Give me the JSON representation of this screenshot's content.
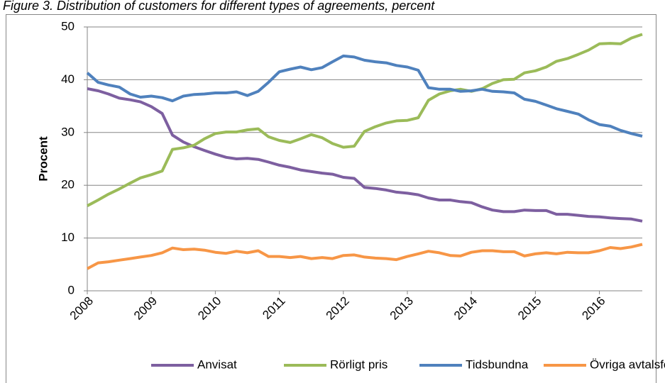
{
  "chart_data": {
    "type": "line",
    "title": "Figure 3. Distribution of customers for different types of agreements, percent",
    "y_label": "Procent",
    "x": [
      2008,
      2008.17,
      2008.33,
      2008.5,
      2008.67,
      2008.83,
      2009,
      2009.17,
      2009.33,
      2009.5,
      2009.67,
      2009.83,
      2010,
      2010.17,
      2010.33,
      2010.5,
      2010.67,
      2010.83,
      2011,
      2011.17,
      2011.33,
      2011.5,
      2011.67,
      2011.83,
      2012,
      2012.17,
      2012.33,
      2012.5,
      2012.67,
      2012.83,
      2013,
      2013.17,
      2013.33,
      2013.5,
      2013.67,
      2013.83,
      2014,
      2014.17,
      2014.33,
      2014.5,
      2014.67,
      2014.83,
      2015,
      2015.17,
      2015.33,
      2015.5,
      2015.67,
      2015.83,
      2016,
      2016.17,
      2016.33,
      2016.5,
      2016.67
    ],
    "series": [
      {
        "name": "Anvisat",
        "color": "#7d5fa0",
        "values": [
          38.3,
          37.9,
          37.3,
          36.5,
          36.2,
          35.8,
          34.9,
          33.6,
          29.5,
          28.2,
          27.3,
          26.6,
          25.9,
          25.3,
          25.0,
          25.1,
          24.9,
          24.4,
          23.8,
          23.4,
          22.9,
          22.6,
          22.3,
          22.1,
          21.5,
          21.3,
          19.6,
          19.4,
          19.1,
          18.7,
          18.5,
          18.2,
          17.6,
          17.2,
          17.2,
          16.9,
          16.7,
          15.9,
          15.3,
          15.0,
          15.0,
          15.3,
          15.2,
          15.2,
          14.5,
          14.5,
          14.3,
          14.1,
          14.0,
          13.8,
          13.7,
          13.6,
          13.2
        ]
      },
      {
        "name": "Rörligt pris",
        "color": "#9bbb59",
        "values": [
          16.1,
          17.2,
          18.3,
          19.3,
          20.4,
          21.4,
          22.0,
          22.7,
          26.8,
          27.1,
          27.6,
          28.8,
          29.8,
          30.1,
          30.1,
          30.5,
          30.7,
          29.2,
          28.5,
          28.1,
          28.8,
          29.6,
          29.0,
          27.9,
          27.2,
          27.4,
          30.2,
          31.1,
          31.8,
          32.2,
          32.3,
          32.8,
          36.1,
          37.3,
          37.9,
          38.2,
          37.8,
          38.3,
          39.3,
          40.0,
          40.1,
          41.3,
          41.7,
          42.4,
          43.5,
          44.0,
          44.8,
          45.6,
          46.8,
          46.9,
          46.8,
          47.9,
          48.6
        ]
      },
      {
        "name": "Tidsbundna",
        "color": "#4f81bd",
        "values": [
          41.3,
          39.5,
          39.0,
          38.6,
          37.3,
          36.7,
          36.9,
          36.6,
          36.0,
          36.9,
          37.2,
          37.3,
          37.5,
          37.5,
          37.7,
          37.0,
          37.8,
          39.5,
          41.5,
          42.0,
          42.4,
          41.9,
          42.3,
          43.4,
          44.5,
          44.3,
          43.7,
          43.4,
          43.2,
          42.7,
          42.4,
          41.8,
          38.5,
          38.2,
          38.2,
          37.8,
          37.9,
          38.2,
          37.8,
          37.7,
          37.5,
          36.3,
          35.9,
          35.2,
          34.5,
          34.0,
          33.5,
          32.4,
          31.5,
          31.2,
          30.4,
          29.8,
          29.3
        ]
      },
      {
        "name": "Övriga avtalsformer",
        "color": "#f79646",
        "values": [
          4.2,
          5.3,
          5.5,
          5.8,
          6.1,
          6.4,
          6.7,
          7.2,
          8.1,
          7.8,
          7.9,
          7.7,
          7.3,
          7.1,
          7.5,
          7.2,
          7.6,
          6.5,
          6.5,
          6.3,
          6.5,
          6.1,
          6.3,
          6.1,
          6.7,
          6.8,
          6.4,
          6.2,
          6.1,
          5.9,
          6.5,
          7.0,
          7.5,
          7.2,
          6.7,
          6.6,
          7.3,
          7.6,
          7.6,
          7.4,
          7.4,
          6.6,
          7.0,
          7.2,
          7.0,
          7.3,
          7.2,
          7.2,
          7.6,
          8.2,
          8.0,
          8.3,
          8.8
        ]
      }
    ],
    "xlim": [
      2008,
      2016.67
    ],
    "xticks": [
      2008,
      2009,
      2010,
      2011,
      2012,
      2013,
      2014,
      2015,
      2016
    ],
    "ylim": [
      0,
      50
    ],
    "yticks": [
      0,
      10,
      20,
      30,
      40,
      50
    ],
    "grid": true,
    "legend": "bottom"
  }
}
